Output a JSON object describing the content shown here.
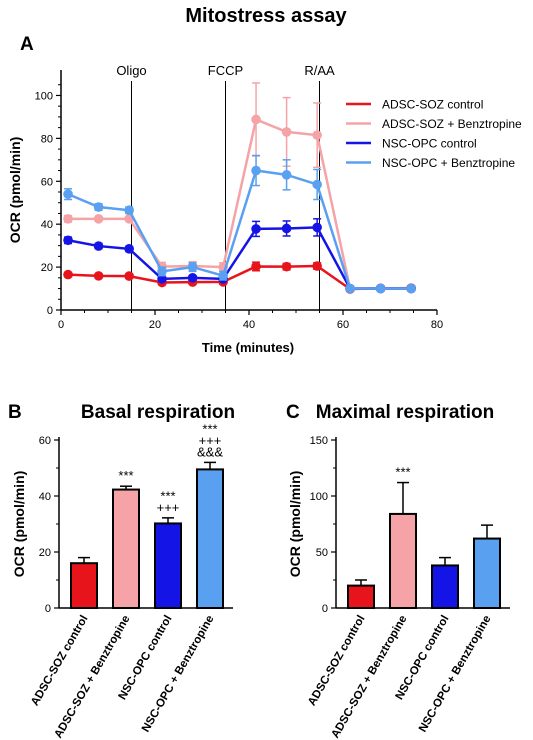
{
  "figure_title": "Mitostress assay",
  "panel_labels": {
    "a": "A",
    "b": "B",
    "c": "C"
  },
  "colors": {
    "adsc_control": "#e8141b",
    "adsc_benz": "#f5a3a6",
    "nsc_control": "#1414e6",
    "nsc_benz": "#5aa0f0",
    "adsc_benz_legend_text": "#e8141b",
    "nsc_benz_legend_text": "#1414e6"
  },
  "chart_data": [
    {
      "type": "line",
      "panel": "A",
      "xlabel": "Time (minutes)",
      "ylabel": "OCR (pmol/min)",
      "xlim": [
        0,
        80
      ],
      "ylim": [
        0,
        110
      ],
      "x_ticks": [
        0,
        20,
        40,
        60,
        80
      ],
      "y_ticks": [
        0,
        20,
        40,
        60,
        80,
        100
      ],
      "legend_position": "top-right",
      "injections": [
        {
          "label": "Oligo",
          "x": 15
        },
        {
          "label": "FCCP",
          "x": 35
        },
        {
          "label": "R/AA",
          "x": 55
        }
      ],
      "series": [
        {
          "name": "ADSC-SOZ control",
          "color_key": "adsc_control",
          "x": [
            1.5,
            8,
            14.5,
            21.5,
            28,
            34.5,
            41.5,
            48,
            54.5,
            61.5,
            68,
            74.5
          ],
          "y": [
            16.5,
            15.9,
            15.8,
            12.8,
            13.0,
            13.1,
            20.3,
            20.2,
            20.5,
            9.8,
            10.1,
            10.2
          ],
          "err": [
            1.0,
            1.0,
            1.0,
            1.0,
            1.0,
            1.0,
            2.0,
            1.5,
            1.5,
            1.0,
            1.0,
            1.0
          ]
        },
        {
          "name": "ADSC-SOZ + Benztropine",
          "color_key": "adsc_benz",
          "x": [
            1.5,
            8,
            14.5,
            21.5,
            28,
            34.5,
            41.5,
            48,
            54.5,
            61.5,
            68,
            74.5
          ],
          "y": [
            42.5,
            42.5,
            42.5,
            20.2,
            20.5,
            20.0,
            88.8,
            83.0,
            81.5,
            10.0,
            10.0,
            10.0
          ],
          "err": [
            1.5,
            1.0,
            1.0,
            2.0,
            2.0,
            2.0,
            17.0,
            16.0,
            15.0,
            1.0,
            1.0,
            1.0
          ]
        },
        {
          "name": "NSC-OPC control",
          "color_key": "nsc_control",
          "x": [
            1.5,
            8,
            14.5,
            21.5,
            28,
            34.5,
            41.5,
            48,
            54.5,
            61.5,
            68,
            74.5
          ],
          "y": [
            32.5,
            29.8,
            28.5,
            14.5,
            15.0,
            14.5,
            37.8,
            38.0,
            38.5,
            10.0,
            10.0,
            10.0
          ],
          "err": [
            1.5,
            1.2,
            1.2,
            1.0,
            1.0,
            1.0,
            3.5,
            3.5,
            4.0,
            1.0,
            1.0,
            1.0
          ]
        },
        {
          "name": "NSC-OPC + Benztropine",
          "color_key": "nsc_benz",
          "x": [
            1.5,
            8,
            14.5,
            21.5,
            28,
            34.5,
            41.5,
            48,
            54.5,
            61.5,
            68,
            74.5
          ],
          "y": [
            54.0,
            48.0,
            46.5,
            18.0,
            20.0,
            16.0,
            65.0,
            63.0,
            58.5,
            10.0,
            10.0,
            10.0
          ],
          "err": [
            2.5,
            1.5,
            1.5,
            2.0,
            2.0,
            2.0,
            7.0,
            7.0,
            7.0,
            1.0,
            1.0,
            1.0
          ]
        }
      ]
    },
    {
      "type": "bar",
      "panel": "B",
      "title": "Basal respiration",
      "ylabel": "OCR (pmol/min)",
      "ylim": [
        0,
        60
      ],
      "y_ticks": [
        0,
        20,
        40,
        60
      ],
      "categories": [
        "ADSC-SOZ control",
        "ADSC-SOZ + Benztropine",
        "NSC-OPC control",
        "NSC-OPC + Benztropine"
      ],
      "values": [
        16.0,
        42.3,
        30.2,
        49.5
      ],
      "errors": [
        2.0,
        1.2,
        2.0,
        2.5
      ],
      "color_keys": [
        "adsc_control",
        "adsc_benz",
        "nsc_control",
        "nsc_benz"
      ],
      "annotations": [
        [],
        [
          "***"
        ],
        [
          "***",
          "+++"
        ],
        [
          "***",
          "+++",
          "&&&"
        ]
      ]
    },
    {
      "type": "bar",
      "panel": "C",
      "title": "Maximal respiration",
      "ylabel": "OCR (pmol/min)",
      "ylim": [
        0,
        150
      ],
      "y_ticks": [
        0,
        50,
        100,
        150
      ],
      "categories": [
        "ADSC-SOZ control",
        "ADSC-SOZ + Benztropine",
        "NSC-OPC control",
        "NSC-OPC + Benztropine"
      ],
      "values": [
        20.0,
        84.0,
        38.0,
        62.0
      ],
      "errors": [
        5.0,
        28.0,
        7.0,
        12.0
      ],
      "color_keys": [
        "adsc_control",
        "adsc_benz",
        "nsc_control",
        "nsc_benz"
      ],
      "annotations": [
        [],
        [
          "***"
        ],
        [],
        []
      ]
    }
  ]
}
